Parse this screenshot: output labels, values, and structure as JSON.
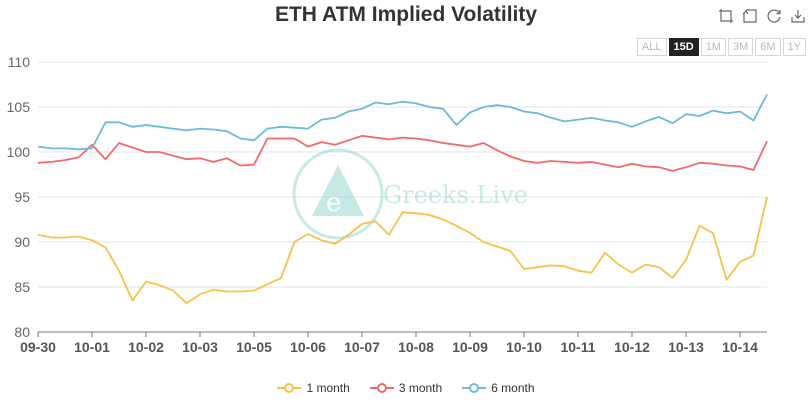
{
  "toolbar": {
    "icons": [
      "zoom-icon",
      "zoom-reset-icon",
      "restore-icon",
      "save-image-icon"
    ],
    "ranges": [
      "ALL",
      "15D",
      "1M",
      "3M",
      "6M",
      "1Y"
    ],
    "active_range": "15D"
  },
  "watermark": "Greeks.Live",
  "chart_data": {
    "type": "line",
    "title": "ETH ATM Implied Volatility",
    "xlabel": "",
    "ylabel": "",
    "x_ticks": [
      "09-30",
      "10-01",
      "10-02",
      "10-03",
      "10-05",
      "10-06",
      "10-07",
      "10-08",
      "10-09",
      "10-10",
      "10-11",
      "10-12",
      "10-13",
      "10-14"
    ],
    "ylim": [
      80,
      110
    ],
    "y_ticks": [
      80,
      85,
      90,
      95,
      100,
      105,
      110
    ],
    "grid": true,
    "legend": "bottom",
    "x": [
      0,
      0.25,
      0.5,
      0.75,
      1.0,
      1.25,
      1.5,
      1.75,
      2.0,
      2.25,
      2.5,
      2.75,
      3.0,
      3.25,
      3.5,
      3.75,
      4.0,
      4.25,
      4.5,
      4.75,
      5.0,
      5.25,
      5.5,
      5.75,
      6.0,
      6.25,
      6.5,
      6.75,
      7.0,
      7.25,
      7.5,
      7.75,
      8.0,
      8.25,
      8.5,
      8.75,
      9.0,
      9.25,
      9.5,
      9.75,
      10.0,
      10.25,
      10.5,
      10.75,
      11.0,
      11.25,
      11.5,
      11.75,
      12.0,
      12.25,
      12.5,
      12.75,
      13.0,
      13.25,
      13.5
    ],
    "series": [
      {
        "name": "1 month",
        "color": "#f5c24c",
        "values": [
          90.8,
          90.5,
          90.5,
          90.6,
          90.2,
          89.4,
          86.8,
          83.5,
          85.6,
          85.2,
          84.6,
          83.2,
          84.2,
          84.7,
          84.5,
          84.5,
          84.6,
          85.3,
          86.0,
          90.0,
          90.9,
          90.2,
          89.8,
          90.8,
          92.0,
          92.3,
          90.8,
          93.3,
          93.2,
          93.0,
          92.5,
          91.8,
          91.0,
          90.0,
          89.5,
          89.0,
          87.0,
          87.2,
          87.4,
          87.3,
          86.8,
          86.6,
          88.8,
          87.5,
          86.6,
          87.5,
          87.2,
          86.0,
          88.0,
          91.8,
          91.0,
          85.8,
          87.8,
          88.5,
          95.0
        ]
      },
      {
        "name": "3 month",
        "color": "#f16a6a",
        "values": [
          98.8,
          98.9,
          99.1,
          99.4,
          100.8,
          99.2,
          101.0,
          100.5,
          100.0,
          100.0,
          99.6,
          99.2,
          99.3,
          98.9,
          99.3,
          98.5,
          98.6,
          101.5,
          101.5,
          101.5,
          100.6,
          101.1,
          100.8,
          101.3,
          101.8,
          101.6,
          101.4,
          101.6,
          101.5,
          101.3,
          101.0,
          100.8,
          100.6,
          101.0,
          100.2,
          99.5,
          99.0,
          98.8,
          99.0,
          98.9,
          98.8,
          98.9,
          98.6,
          98.3,
          98.7,
          98.4,
          98.3,
          97.9,
          98.3,
          98.8,
          98.7,
          98.5,
          98.4,
          98.0,
          101.2
        ]
      },
      {
        "name": "6 month",
        "color": "#6cbadb",
        "values": [
          100.6,
          100.4,
          100.4,
          100.3,
          100.4,
          103.3,
          103.3,
          102.8,
          103.0,
          102.8,
          102.6,
          102.4,
          102.6,
          102.5,
          102.3,
          101.5,
          101.3,
          102.6,
          102.8,
          102.7,
          102.6,
          103.6,
          103.8,
          104.5,
          104.8,
          105.5,
          105.3,
          105.6,
          105.4,
          105.0,
          104.8,
          103.0,
          104.4,
          105.0,
          105.2,
          105.0,
          104.5,
          104.3,
          103.8,
          103.4,
          103.6,
          103.8,
          103.5,
          103.3,
          102.8,
          103.4,
          103.9,
          103.2,
          104.2,
          104.0,
          104.6,
          104.3,
          104.5,
          103.5,
          106.4
        ]
      }
    ]
  }
}
